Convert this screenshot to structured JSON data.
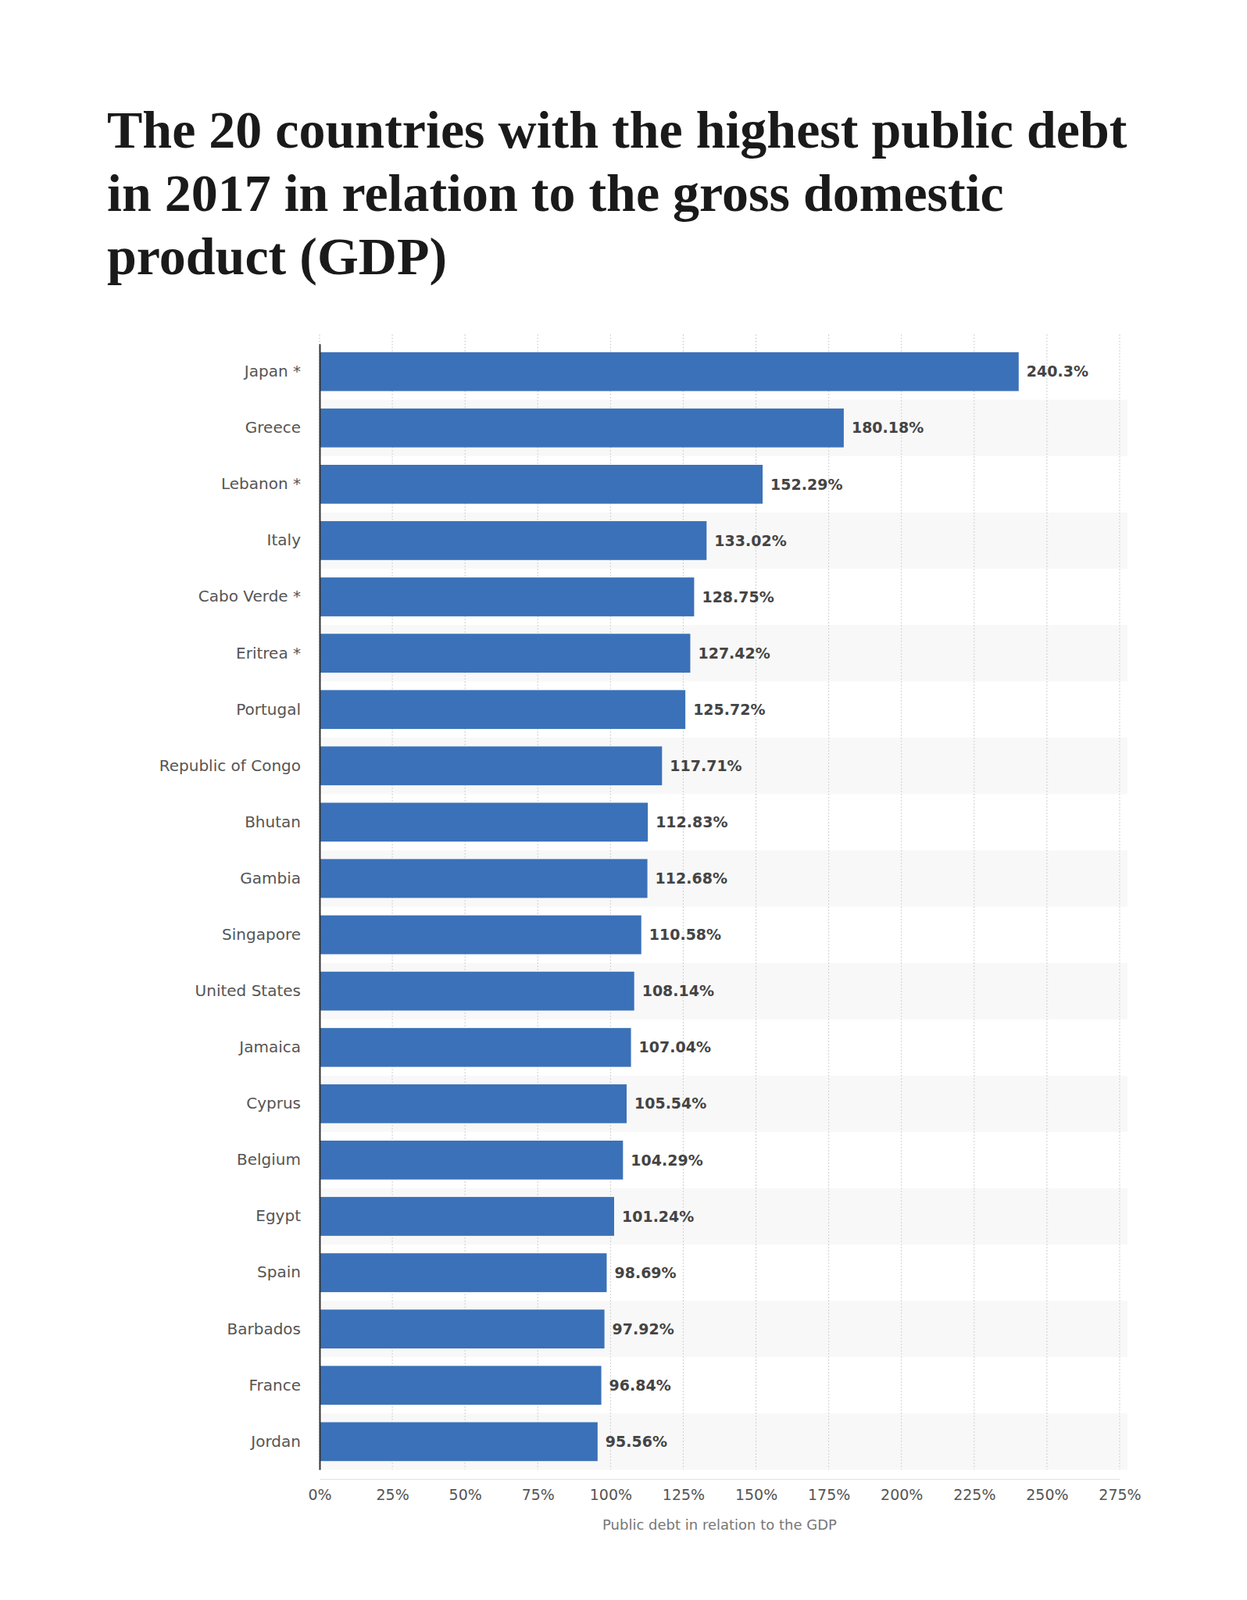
{
  "chart_data": {
    "type": "bar",
    "orientation": "horizontal",
    "title": "The 20 countries with the highest public debt in 2017 in relation to the gross domestic product (GDP)",
    "x_label": "Public debt in relation to the GDP",
    "categories": [
      "Japan *",
      "Greece",
      "Lebanon *",
      "Italy",
      "Cabo Verde *",
      "Eritrea *",
      "Portugal",
      "Republic of Congo",
      "Bhutan",
      "Gambia",
      "Singapore",
      "United States",
      "Jamaica",
      "Cyprus",
      "Belgium",
      "Egypt",
      "Spain",
      "Barbados",
      "France",
      "Jordan"
    ],
    "values": [
      240.3,
      180.18,
      152.29,
      133.02,
      128.75,
      127.42,
      125.72,
      117.71,
      112.83,
      112.68,
      110.58,
      108.14,
      107.04,
      105.54,
      104.29,
      101.24,
      98.69,
      97.92,
      96.84,
      95.56
    ],
    "value_labels": [
      "240.3%",
      "180.18%",
      "152.29%",
      "133.02%",
      "128.75%",
      "127.42%",
      "125.72%",
      "117.71%",
      "112.83%",
      "112.68%",
      "110.58%",
      "108.14%",
      "107.04%",
      "105.54%",
      "104.29%",
      "101.24%",
      "98.69%",
      "97.92%",
      "96.84%",
      "95.56%"
    ],
    "color": "#3b71b8",
    "xlim": [
      0,
      275
    ],
    "xticks": [
      {
        "value": 0,
        "label": "0%"
      },
      {
        "value": 25,
        "label": "25%"
      },
      {
        "value": 50,
        "label": "50%"
      },
      {
        "value": 75,
        "label": "75%"
      },
      {
        "value": 100,
        "label": "100%"
      },
      {
        "value": 125,
        "label": "125%"
      },
      {
        "value": 150,
        "label": "150%"
      },
      {
        "value": 175,
        "label": "175%"
      },
      {
        "value": 200,
        "label": "200%"
      },
      {
        "value": 225,
        "label": "225%"
      },
      {
        "value": 250,
        "label": "250%"
      },
      {
        "value": 275,
        "label": "275%"
      }
    ],
    "grid": true,
    "data_labels": true
  }
}
